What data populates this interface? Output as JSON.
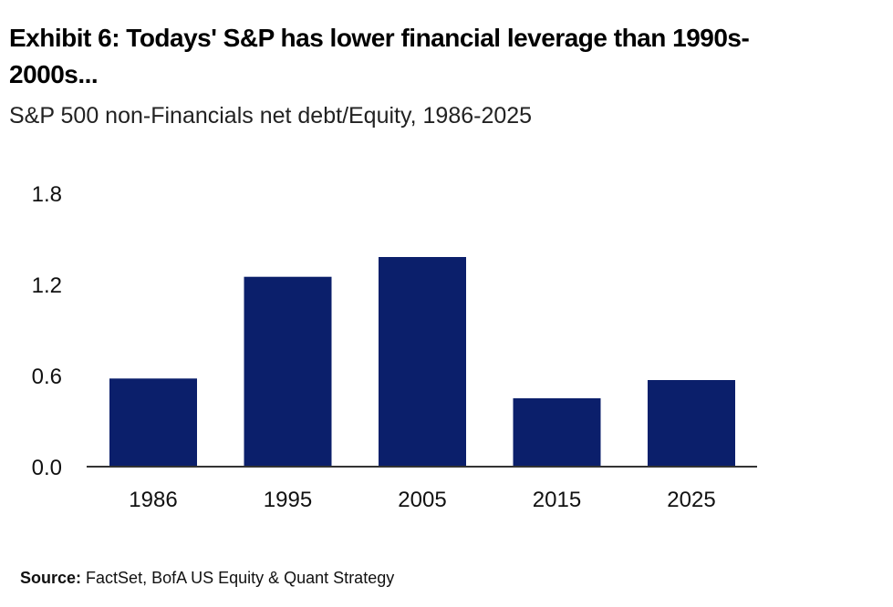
{
  "header": {
    "title": "Exhibit 6: Todays' S&P has lower financial leverage than 1990s-2000s...",
    "subtitle": "S&P 500 non-Financials net debt/Equity, 1986-2025"
  },
  "footer": {
    "source_label": "Source:",
    "source_text": "FactSet, BofA US Equity & Quant Strategy"
  },
  "colors": {
    "bar": "#0b1f6b",
    "axis": "#333333"
  },
  "chart_data": {
    "type": "bar",
    "title": "Exhibit 6: Todays' S&P has lower financial leverage than 1990s-2000s...",
    "subtitle": "S&P 500 non-Financials net debt/Equity, 1986-2025",
    "categories": [
      "1986",
      "1995",
      "2005",
      "2015",
      "2025"
    ],
    "values": [
      0.58,
      1.25,
      1.38,
      0.45,
      0.57
    ],
    "xlabel": "",
    "ylabel": "",
    "ylim": [
      0.0,
      1.8
    ],
    "yticks": [
      0.0,
      0.6,
      1.2,
      1.8
    ],
    "ytick_labels": [
      "0.0",
      "0.6",
      "1.2",
      "1.8"
    ],
    "grid": false,
    "legend": "none"
  }
}
